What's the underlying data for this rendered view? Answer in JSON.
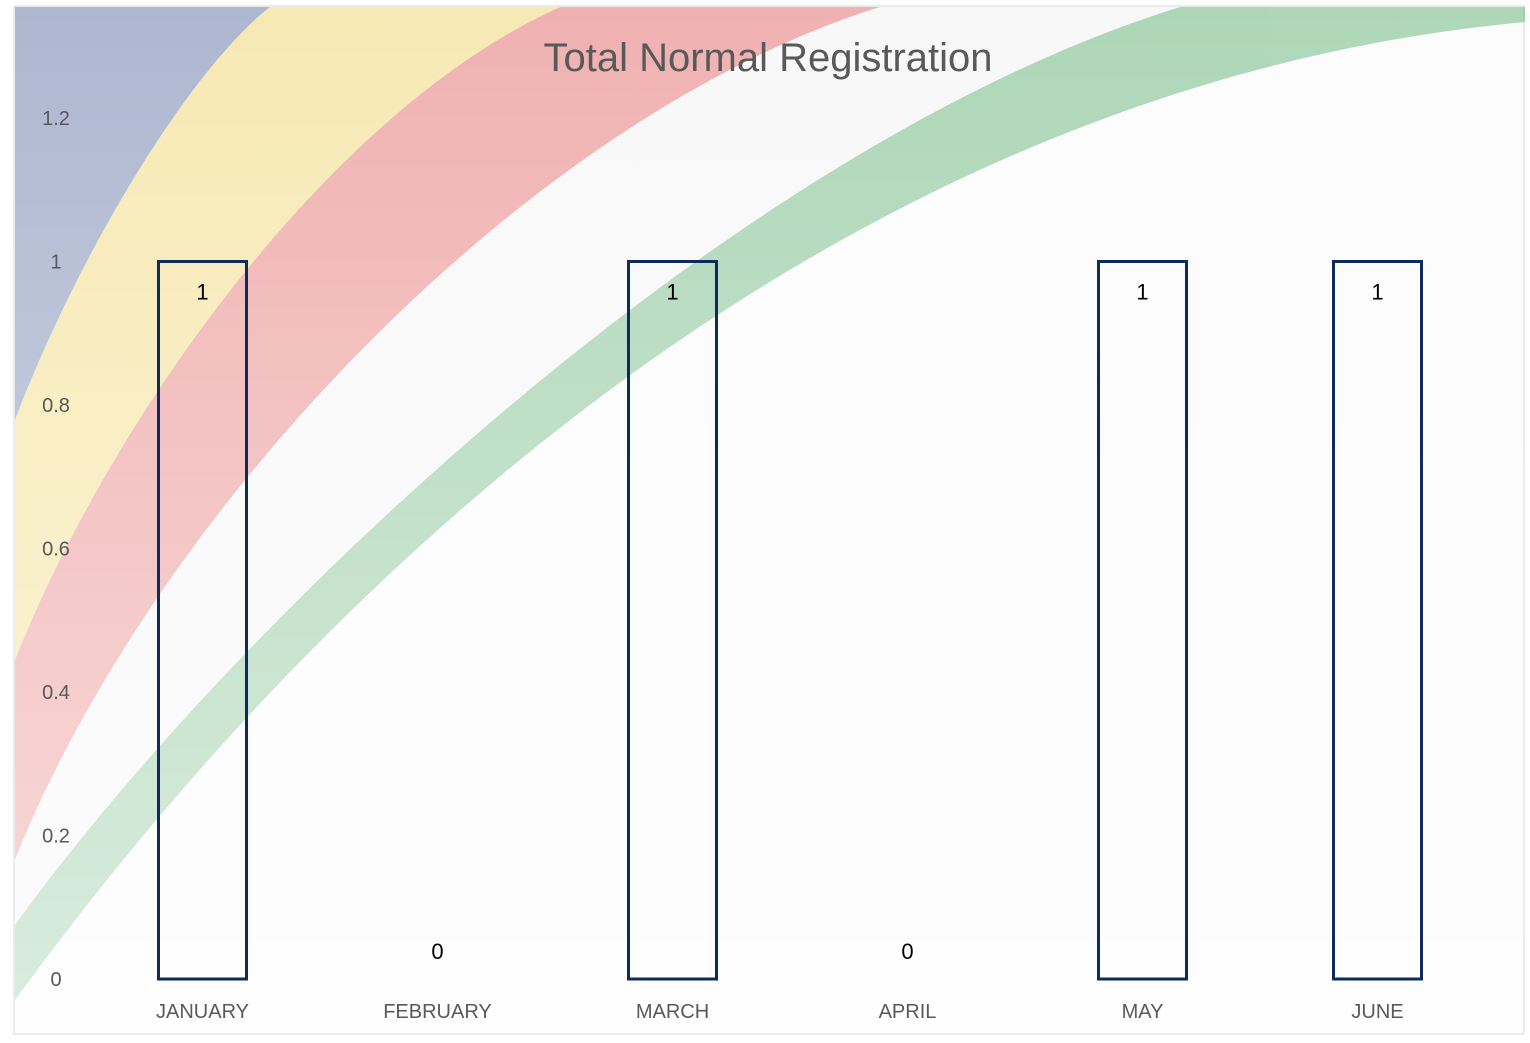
{
  "chart_data": {
    "type": "bar",
    "title": "Total Normal Registration",
    "categories": [
      "JANUARY",
      "FEBRUARY",
      "MARCH",
      "APRIL",
      "MAY",
      "JUNE"
    ],
    "values": [
      1,
      0,
      1,
      0,
      1,
      1
    ],
    "data_labels": [
      "1",
      "0",
      "1",
      "0",
      "1",
      "1"
    ],
    "ylim": [
      0,
      1.2
    ],
    "yticks": [
      0,
      0.2,
      0.4,
      0.6,
      0.8,
      1,
      1.2
    ],
    "ytick_labels": [
      "0",
      "0.2",
      "0.4",
      "0.6",
      "0.8",
      "1",
      "1.2"
    ],
    "xlabel": "",
    "ylabel": "",
    "grid": false,
    "legend": "none",
    "bar_fill": "none",
    "bar_outline_color": "#0f2a5c",
    "background": "flag-ribbon"
  }
}
